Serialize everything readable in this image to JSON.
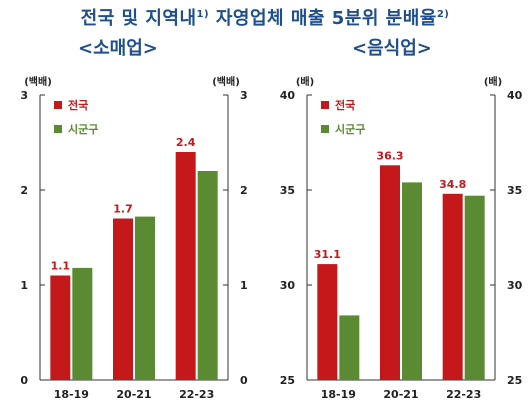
{
  "page": {
    "title_main": "전국 및 지역내",
    "title_sup1": "1)",
    "title_rest": " 자영업체 매출 5분위 분배율",
    "title_sup2": "2)"
  },
  "colors": {
    "title": "#1f4e8c",
    "nationwide": "#c4181b",
    "sigungu": "#5a8a32",
    "axis": "#333333"
  },
  "chart_data": [
    {
      "type": "bar",
      "title": "<소매업>",
      "categories": [
        "18-19",
        "20-21",
        "22-23"
      ],
      "unit_left": "(백배)",
      "unit_right": "(백배)",
      "ylim": [
        0,
        3
      ],
      "yticks": [
        0,
        1,
        2,
        3
      ],
      "legend_position": "top-left",
      "series": [
        {
          "name": "전국",
          "values": [
            1.1,
            1.7,
            2.4
          ],
          "labels": [
            "1.1",
            "1.7",
            "2.4"
          ]
        },
        {
          "name": "시군구",
          "values": [
            1.18,
            1.72,
            2.2
          ]
        }
      ]
    },
    {
      "type": "bar",
      "title": "<음식업>",
      "categories": [
        "18-19",
        "20-21",
        "22-23"
      ],
      "unit_left": "(배)",
      "unit_right": "(배)",
      "ylim": [
        25,
        40
      ],
      "yticks": [
        25,
        30,
        35,
        40
      ],
      "legend_position": "top-left",
      "series": [
        {
          "name": "전국",
          "values": [
            31.1,
            36.3,
            34.8
          ],
          "labels": [
            "31.1",
            "36.3",
            "34.8"
          ]
        },
        {
          "name": "시군구",
          "values": [
            28.4,
            35.4,
            34.7
          ]
        }
      ]
    }
  ]
}
